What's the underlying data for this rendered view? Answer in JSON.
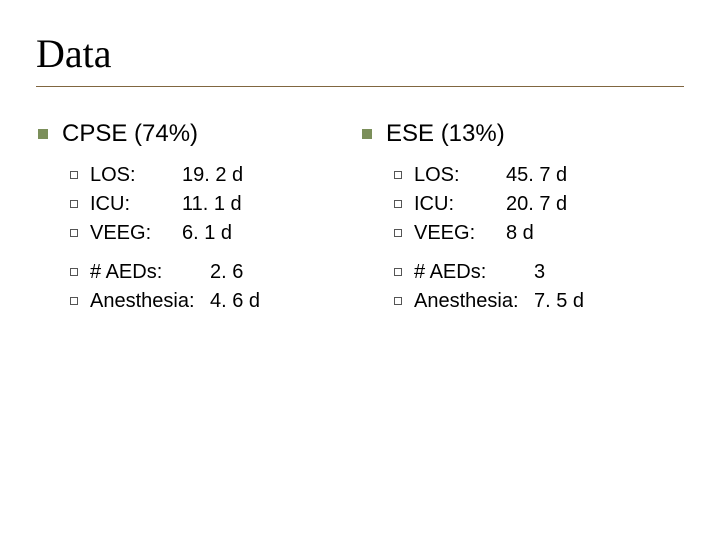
{
  "title": "Data",
  "colors": {
    "underline": "#806640",
    "square_bullet": "#7b8f5a",
    "hollow_bullet_border": "#555555",
    "background": "#ffffff",
    "text": "#000000"
  },
  "typography": {
    "title_font": "Georgia",
    "title_size_pt": 30,
    "body_font": "Arial",
    "l1_size_pt": 18,
    "l2_size_pt": 15
  },
  "columns": [
    {
      "heading": "CPSE (74%)",
      "groups": [
        [
          {
            "label": "LOS:",
            "value": "19. 2 d"
          },
          {
            "label": "ICU:",
            "value": "11. 1 d"
          },
          {
            "label": "VEEG:",
            "value": "  6. 1 d"
          }
        ],
        [
          {
            "label": "# AEDs:",
            "value": "     2. 6"
          },
          {
            "label": "Anesthesia:",
            "value": " 4. 6 d"
          }
        ]
      ]
    },
    {
      "heading": "ESE (13%)",
      "groups": [
        [
          {
            "label": "LOS:",
            "value": "45. 7 d"
          },
          {
            "label": "ICU:",
            "value": "20. 7 d"
          },
          {
            "label": "VEEG:",
            "value": "     8 d"
          }
        ],
        [
          {
            "label": "# AEDs:",
            "value": "         3"
          },
          {
            "label": "Anesthesia:",
            "value": " 7. 5 d"
          }
        ]
      ]
    }
  ]
}
